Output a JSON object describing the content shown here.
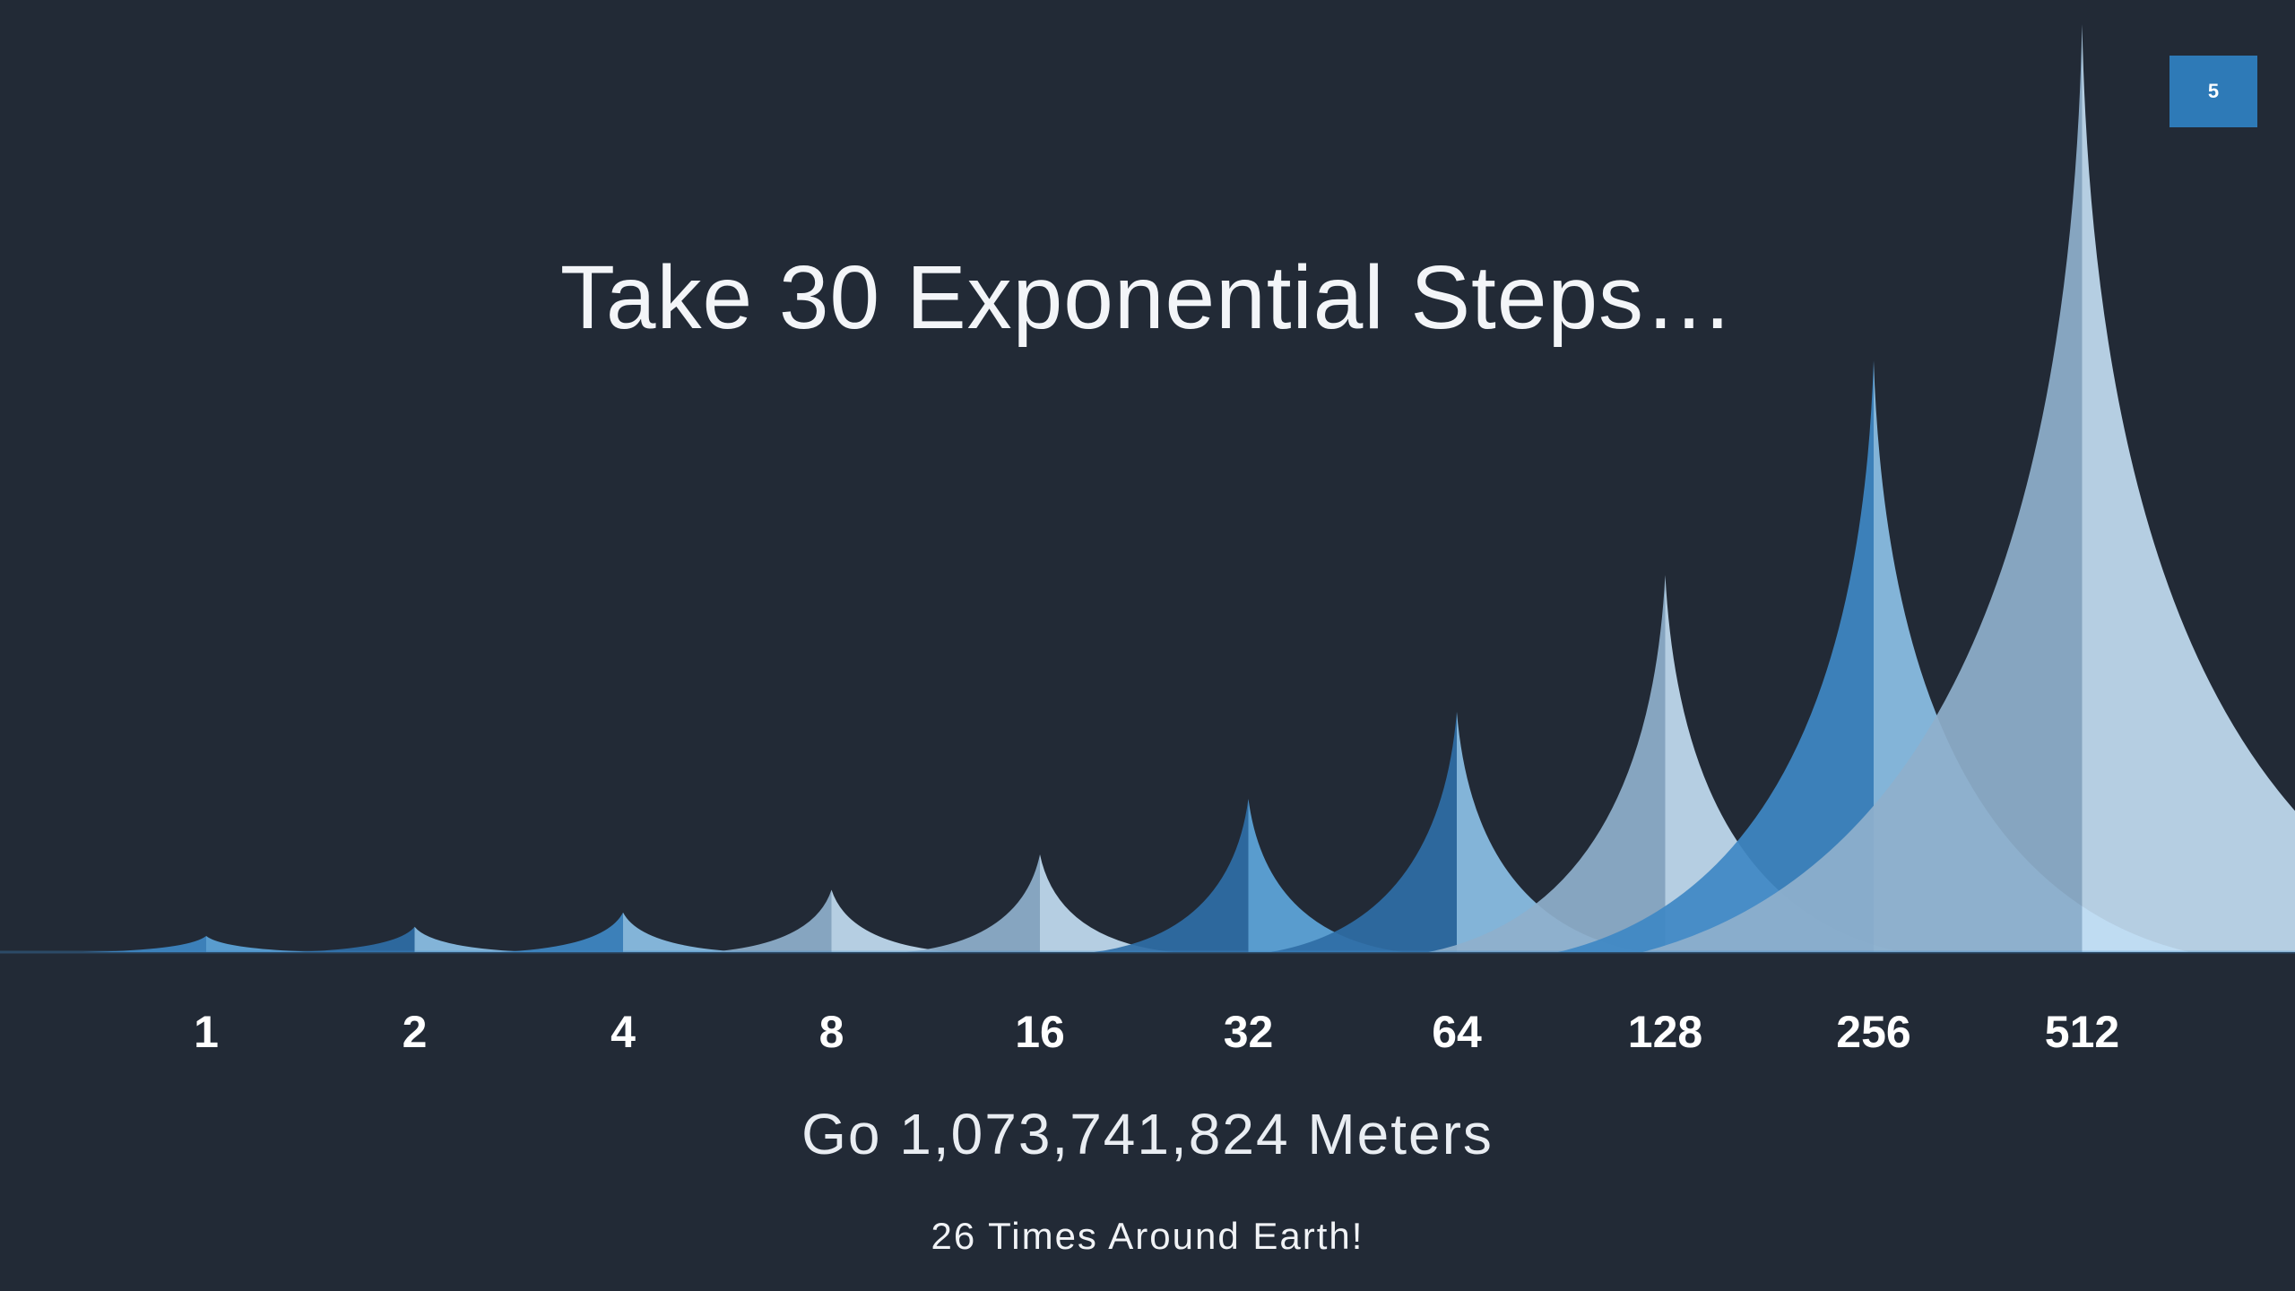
{
  "slide": {
    "title": "Take 30 Exponential Steps…",
    "page_number": "5",
    "result": "Go 1,073,741,824 Meters",
    "note": "26 Times Around Earth!"
  },
  "chart_data": {
    "type": "area",
    "title": "",
    "xlabel": "",
    "ylabel": "",
    "categories": [
      "1",
      "2",
      "4",
      "8",
      "16",
      "32",
      "64",
      "128",
      "256",
      "512"
    ],
    "values": [
      1,
      2,
      4,
      8,
      16,
      32,
      64,
      128,
      256,
      512
    ],
    "scale": "exponential",
    "grid": false,
    "legend": "none",
    "colors": {
      "background": "#222a36",
      "light": "#c5e0f5",
      "mid": "#8ec3ea",
      "bright": "#5fa8df",
      "blue": "#3f88c4",
      "deep": "#2f6ea6",
      "grey": "#8fb0cc",
      "accent": "#2e7ab7"
    }
  }
}
